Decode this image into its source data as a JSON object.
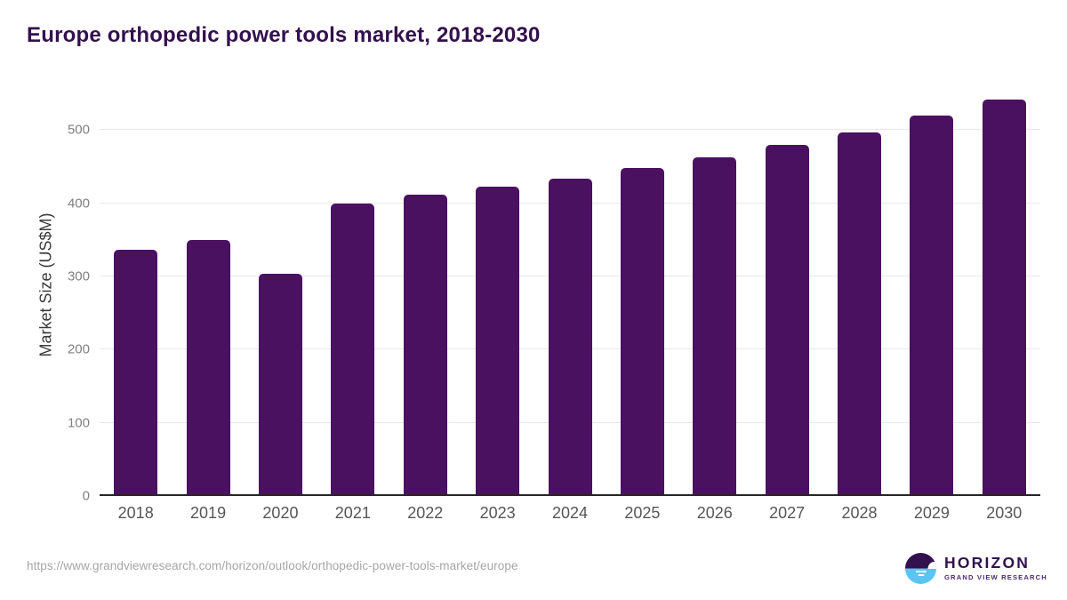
{
  "chart_data": {
    "type": "bar",
    "title": "Europe orthopedic power tools market, 2018-2030",
    "categories": [
      "2018",
      "2019",
      "2020",
      "2021",
      "2022",
      "2023",
      "2024",
      "2025",
      "2026",
      "2027",
      "2028",
      "2029",
      "2030"
    ],
    "values": [
      336,
      350,
      304,
      400,
      411,
      422,
      434,
      448,
      463,
      479,
      497,
      519,
      541
    ],
    "xlabel": "",
    "ylabel": "Market Size (US$M)",
    "ylim": [
      0,
      556
    ],
    "yticks": [
      0,
      100,
      200,
      300,
      400,
      500
    ],
    "grid": true,
    "legend": "none",
    "bar_color": "#4B1161"
  },
  "colors": {
    "title": "#33104E",
    "bar": "#4B1161",
    "gridline": "#E8E8E8",
    "axis_line": "#262626",
    "ytick_text": "#808080",
    "xtick_text": "#565658",
    "url_text": "#A6A6A6",
    "logo_purple": "#33104E",
    "logo_blue": "#5BC4F1",
    "background": "#FFFFFF"
  },
  "footer": {
    "source_url": "https://www.grandviewresearch.com/horizon/outlook/orthopedic-power-tools-market/europe",
    "logo": {
      "name": "HORIZON",
      "subtitle": "GRAND VIEW RESEARCH"
    }
  }
}
